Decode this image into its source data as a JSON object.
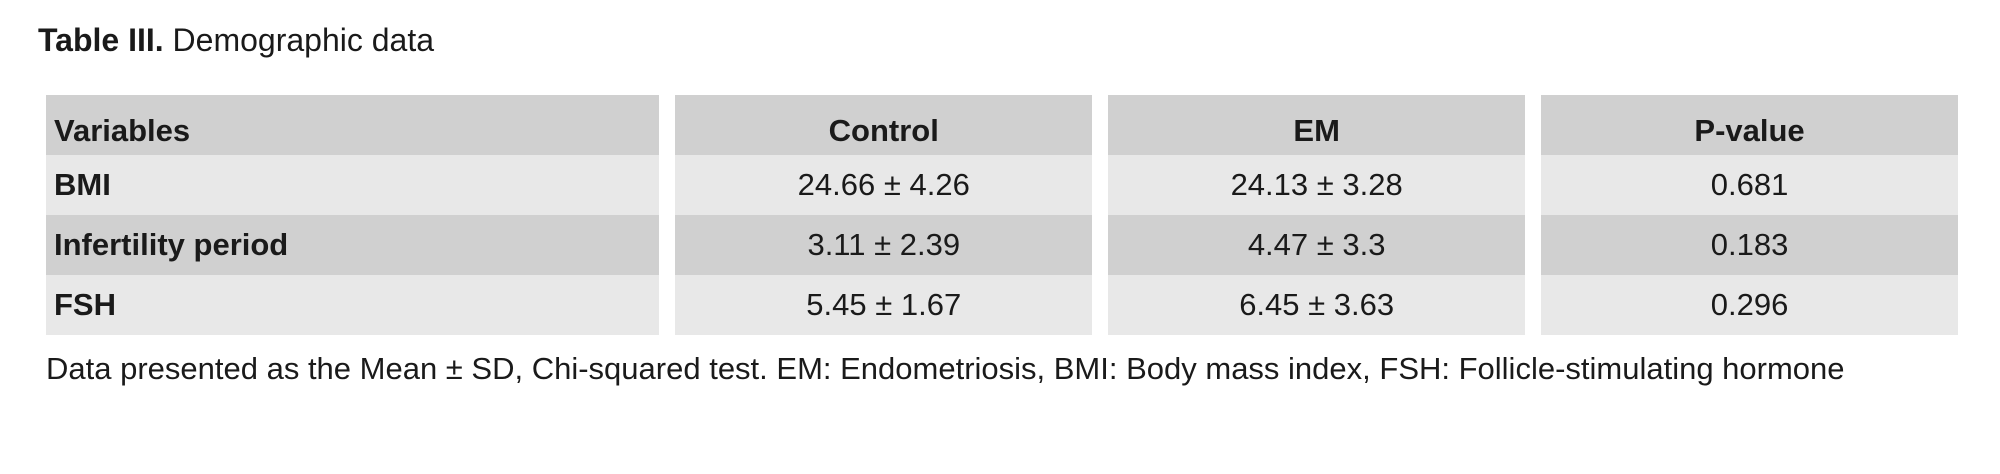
{
  "title": {
    "label": "Table III.",
    "text": "Demographic data"
  },
  "table": {
    "headers": [
      "Variables",
      "Control",
      "EM",
      "P-value"
    ],
    "rows": [
      [
        "BMI",
        "24.66 ± 4.26",
        "24.13 ± 3.28",
        "0.681"
      ],
      [
        "Infertility period",
        "3.11 ± 2.39",
        "4.47 ± 3.3",
        "0.183"
      ],
      [
        "FSH",
        "5.45 ± 1.67",
        "6.45 ± 3.63",
        "0.296"
      ]
    ]
  },
  "footnote": "Data presented as the Mean ± SD, Chi-squared test. EM: Endometriosis, BMI: Body mass index, FSH: Follicle-stimulating hormone",
  "colors": {
    "header_bg": "#d0d0d0",
    "row_light": "#e8e8e8",
    "row_dark": "#d0d0d0"
  }
}
